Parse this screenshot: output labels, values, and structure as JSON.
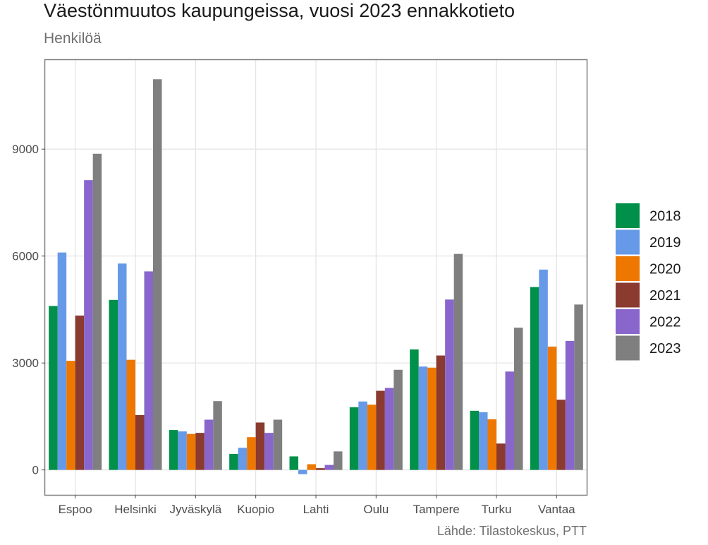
{
  "header": {
    "title": "Väestönmuutos kaupungeissa, vuosi 2023 ennakkotieto",
    "subtitle": "Henkilöä"
  },
  "footer": {
    "caption": "Lähde: Tilastokeskus, PTT"
  },
  "colors": {
    "2018": "#00904A",
    "2019": "#6699E8",
    "2020": "#EE7700",
    "2021": "#8B3A2F",
    "2022": "#8866CC",
    "2023": "#7F7F7F",
    "grid": "#E3E3E3",
    "panel_border": "#7F7F7F"
  },
  "chart_data": {
    "type": "bar",
    "title": "Väestönmuutos kaupungeissa, vuosi 2023 ennakkotieto",
    "subtitle": "Henkilöä",
    "xlabel": "",
    "ylabel": "",
    "categories": [
      "Espoo",
      "Helsinki",
      "Jyväskylä",
      "Kuopio",
      "Lahti",
      "Oulu",
      "Tampere",
      "Turku",
      "Vantaa"
    ],
    "ylim": [
      -700,
      11500
    ],
    "yticks": [
      0,
      3000,
      6000,
      9000
    ],
    "grid": true,
    "legend_position": "right",
    "series": [
      {
        "name": "2018",
        "values": [
          4600,
          4770,
          1120,
          450,
          380,
          1760,
          3380,
          1660,
          5130
        ]
      },
      {
        "name": "2019",
        "values": [
          6100,
          5790,
          1080,
          620,
          -120,
          1920,
          2900,
          1620,
          5620
        ]
      },
      {
        "name": "2020",
        "values": [
          3060,
          3090,
          1010,
          920,
          160,
          1830,
          2870,
          1420,
          3460
        ]
      },
      {
        "name": "2021",
        "values": [
          4330,
          1540,
          1040,
          1330,
          50,
          2220,
          3210,
          740,
          1970
        ]
      },
      {
        "name": "2022",
        "values": [
          8130,
          5570,
          1410,
          1040,
          140,
          2300,
          4780,
          2760,
          3620
        ]
      },
      {
        "name": "2023",
        "values": [
          8870,
          10960,
          1930,
          1410,
          520,
          2810,
          6060,
          3990,
          4640
        ]
      }
    ]
  }
}
